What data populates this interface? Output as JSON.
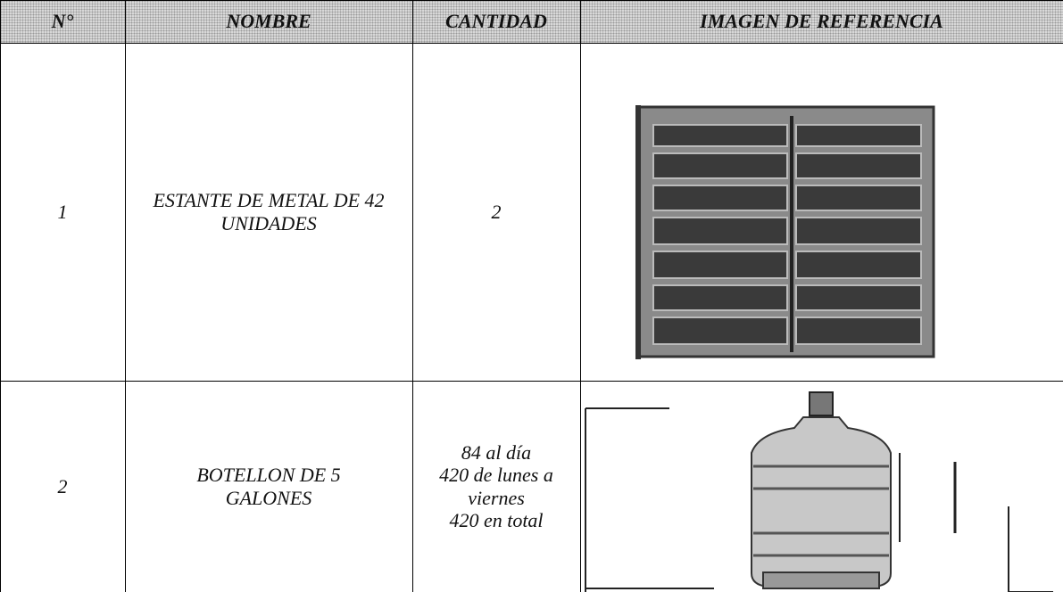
{
  "table": {
    "headers": [
      "N°",
      "NOMBRE",
      "CANTIDAD",
      "IMAGEN DE REFERENCIA"
    ],
    "rows": [
      [
        "1",
        "ESTANTE DE METAL DE 42 UNIDADES",
        "2"
      ],
      [
        "2",
        "BOTELLON DE 5 GALONES",
        [
          "84 al día",
          "420 de lunes a viernes",
          "420 en total"
        ]
      ]
    ]
  }
}
